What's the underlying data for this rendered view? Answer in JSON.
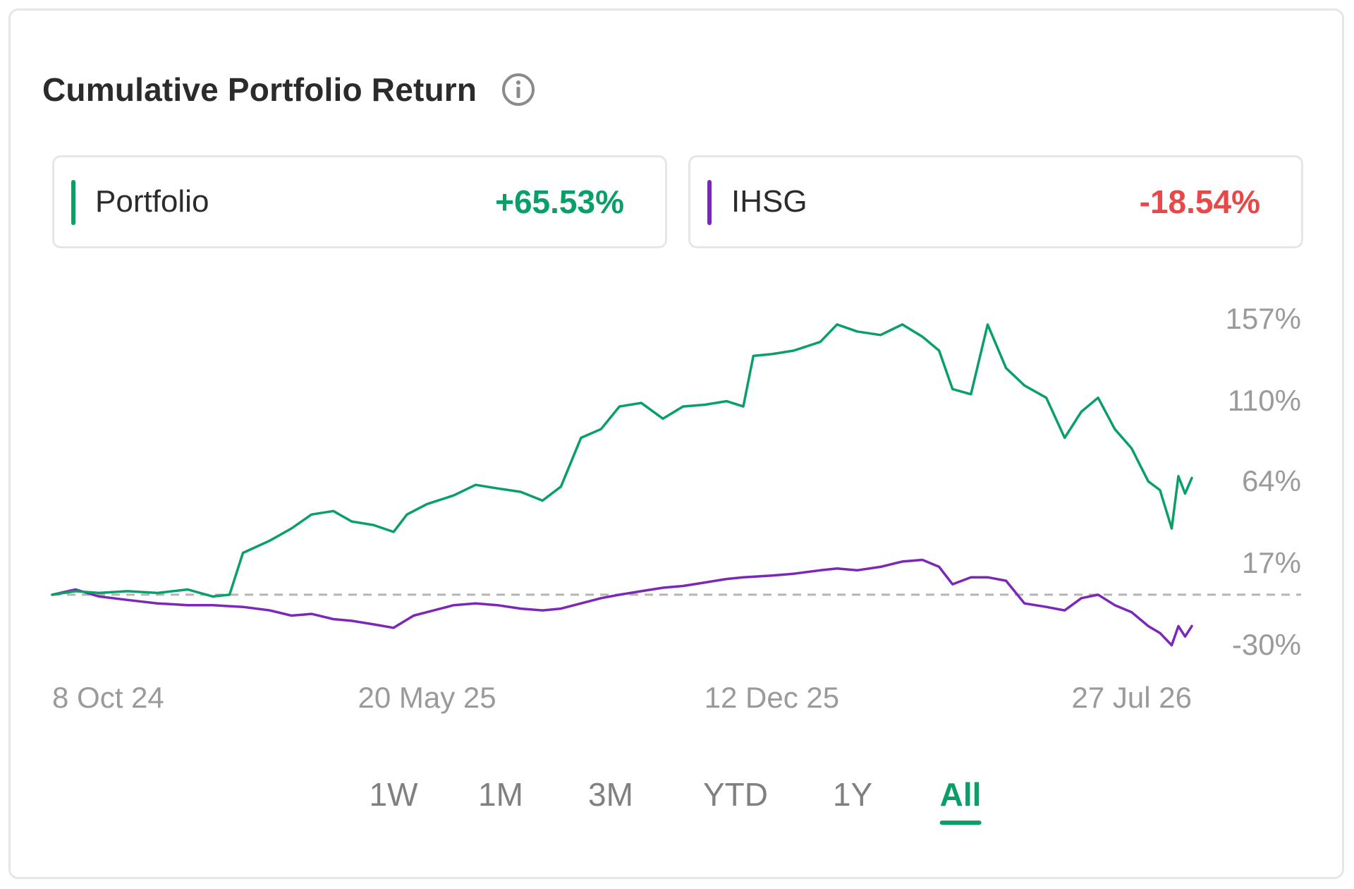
{
  "header": {
    "title": "Cumulative Portfolio Return",
    "info_icon": "info-icon"
  },
  "legend": [
    {
      "name": "Portfolio",
      "value": "+65.53%",
      "color": "#0a9f68",
      "value_color": "#0a9f68"
    },
    {
      "name": "IHSG",
      "value": "-18.54%",
      "color": "#7b28b8",
      "value_color": "#e84848"
    }
  ],
  "ranges": {
    "items": [
      "1W",
      "1M",
      "3M",
      "YTD",
      "1Y",
      "All"
    ],
    "selected": "All",
    "active_color": "#0a9f68"
  },
  "chart_data": {
    "type": "line",
    "y_tick_labels": [
      "157%",
      "110%",
      "64%",
      "17%",
      "-30%"
    ],
    "y_ticks": [
      157,
      110,
      64,
      17,
      -30
    ],
    "ylim": [
      -30,
      157
    ],
    "x_tick_labels": [
      "8 Oct 24",
      "20 May 25",
      "12 Dec 25",
      "27 Jul 26"
    ],
    "x_ticks": [
      "2024-10-08",
      "2025-05-20",
      "2025-12-12",
      "2026-07-27"
    ],
    "xlim": [
      "2024-10-08",
      "2026-08-20"
    ],
    "reference_line": 0,
    "grid": false,
    "series": [
      {
        "name": "Portfolio",
        "color": "#0a9f68",
        "points": [
          [
            "2024-10-08",
            0
          ],
          [
            "2024-10-22",
            2
          ],
          [
            "2024-11-05",
            1
          ],
          [
            "2024-11-22",
            2
          ],
          [
            "2024-12-10",
            1
          ],
          [
            "2024-12-28",
            3
          ],
          [
            "2025-01-12",
            -1
          ],
          [
            "2025-01-22",
            0
          ],
          [
            "2025-01-30",
            24
          ],
          [
            "2025-02-15",
            31
          ],
          [
            "2025-02-28",
            38
          ],
          [
            "2025-03-12",
            46
          ],
          [
            "2025-03-25",
            48
          ],
          [
            "2025-04-05",
            42
          ],
          [
            "2025-04-18",
            40
          ],
          [
            "2025-04-30",
            36
          ],
          [
            "2025-05-08",
            46
          ],
          [
            "2025-05-20",
            52
          ],
          [
            "2025-06-05",
            57
          ],
          [
            "2025-06-18",
            63
          ],
          [
            "2025-07-01",
            61
          ],
          [
            "2025-07-15",
            59
          ],
          [
            "2025-07-28",
            54
          ],
          [
            "2025-08-08",
            62
          ],
          [
            "2025-08-20",
            90
          ],
          [
            "2025-09-01",
            95
          ],
          [
            "2025-09-12",
            108
          ],
          [
            "2025-09-25",
            110
          ],
          [
            "2025-10-08",
            101
          ],
          [
            "2025-10-20",
            108
          ],
          [
            "2025-11-02",
            109
          ],
          [
            "2025-11-15",
            111
          ],
          [
            "2025-11-25",
            108
          ],
          [
            "2025-12-01",
            137
          ],
          [
            "2025-12-12",
            138
          ],
          [
            "2025-12-25",
            140
          ],
          [
            "2026-01-10",
            145
          ],
          [
            "2026-01-20",
            155
          ],
          [
            "2026-02-01",
            151
          ],
          [
            "2026-02-15",
            149
          ],
          [
            "2026-02-28",
            155
          ],
          [
            "2026-03-12",
            148
          ],
          [
            "2026-03-22",
            140
          ],
          [
            "2026-03-30",
            118
          ],
          [
            "2026-04-10",
            115
          ],
          [
            "2026-04-20",
            155
          ],
          [
            "2026-05-01",
            130
          ],
          [
            "2026-05-12",
            120
          ],
          [
            "2026-05-25",
            113
          ],
          [
            "2026-06-05",
            90
          ],
          [
            "2026-06-15",
            105
          ],
          [
            "2026-06-25",
            113
          ],
          [
            "2026-07-05",
            95
          ],
          [
            "2026-07-15",
            84
          ],
          [
            "2026-07-25",
            65
          ],
          [
            "2026-08-01",
            60
          ],
          [
            "2026-08-08",
            38
          ],
          [
            "2026-08-12",
            68
          ],
          [
            "2026-08-16",
            58
          ],
          [
            "2026-08-20",
            67
          ]
        ]
      },
      {
        "name": "IHSG",
        "color": "#7b28b8",
        "points": [
          [
            "2024-10-08",
            0
          ],
          [
            "2024-10-22",
            3
          ],
          [
            "2024-11-05",
            -1
          ],
          [
            "2024-11-22",
            -3
          ],
          [
            "2024-12-10",
            -5
          ],
          [
            "2024-12-28",
            -6
          ],
          [
            "2025-01-12",
            -6
          ],
          [
            "2025-01-30",
            -7
          ],
          [
            "2025-02-15",
            -9
          ],
          [
            "2025-02-28",
            -12
          ],
          [
            "2025-03-12",
            -11
          ],
          [
            "2025-03-25",
            -14
          ],
          [
            "2025-04-05",
            -15
          ],
          [
            "2025-04-18",
            -17
          ],
          [
            "2025-04-30",
            -19
          ],
          [
            "2025-05-12",
            -12
          ],
          [
            "2025-05-20",
            -10
          ],
          [
            "2025-06-05",
            -6
          ],
          [
            "2025-06-18",
            -5
          ],
          [
            "2025-07-01",
            -6
          ],
          [
            "2025-07-15",
            -8
          ],
          [
            "2025-07-28",
            -9
          ],
          [
            "2025-08-08",
            -8
          ],
          [
            "2025-08-20",
            -5
          ],
          [
            "2025-09-01",
            -2
          ],
          [
            "2025-09-12",
            0
          ],
          [
            "2025-09-25",
            2
          ],
          [
            "2025-10-08",
            4
          ],
          [
            "2025-10-20",
            5
          ],
          [
            "2025-11-02",
            7
          ],
          [
            "2025-11-15",
            9
          ],
          [
            "2025-11-25",
            10
          ],
          [
            "2025-12-12",
            11
          ],
          [
            "2025-12-25",
            12
          ],
          [
            "2026-01-10",
            14
          ],
          [
            "2026-01-20",
            15
          ],
          [
            "2026-02-01",
            14
          ],
          [
            "2026-02-15",
            16
          ],
          [
            "2026-02-28",
            19
          ],
          [
            "2026-03-12",
            20
          ],
          [
            "2026-03-22",
            16
          ],
          [
            "2026-03-30",
            6
          ],
          [
            "2026-04-10",
            10
          ],
          [
            "2026-04-20",
            10
          ],
          [
            "2026-05-01",
            8
          ],
          [
            "2026-05-12",
            -5
          ],
          [
            "2026-05-25",
            -7
          ],
          [
            "2026-06-05",
            -9
          ],
          [
            "2026-06-15",
            -2
          ],
          [
            "2026-06-25",
            0
          ],
          [
            "2026-07-05",
            -6
          ],
          [
            "2026-07-15",
            -10
          ],
          [
            "2026-07-25",
            -18
          ],
          [
            "2026-08-01",
            -22
          ],
          [
            "2026-08-08",
            -29
          ],
          [
            "2026-08-12",
            -18
          ],
          [
            "2026-08-16",
            -24
          ],
          [
            "2026-08-20",
            -18
          ]
        ]
      }
    ]
  }
}
